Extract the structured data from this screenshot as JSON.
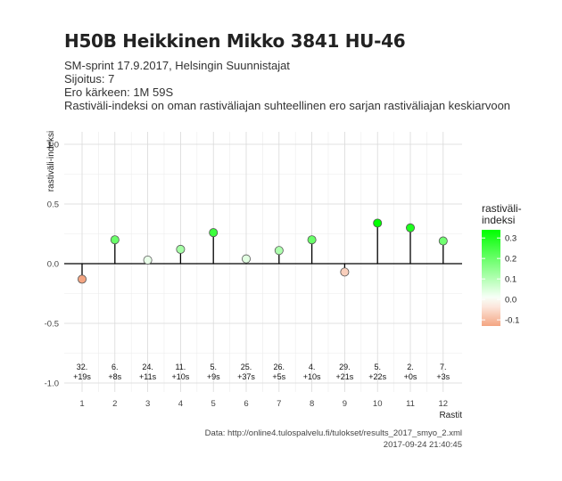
{
  "header": {
    "title": "H50B Heikkinen Mikko 3841 HU-46",
    "subtitle_lines": [
      "SM-sprint 17.9.2017, Helsingin Suunnistajat",
      "Sijoitus: 7",
      "Ero kärkeen: 1M 59S",
      "Rastiväli-indeksi on oman rastiväliajan suhteellinen ero sarjan rastiväliajan keskiarvoon"
    ]
  },
  "caption": {
    "source": "Data: http://online4.tulospalvelu.fi/tulokset/results_2017_smyo_2.xml",
    "timestamp": "2017-09-24 21:40:45"
  },
  "chart_data": {
    "type": "scatter",
    "style": "lollipop",
    "xlabel": "Rastit",
    "ylabel": "rastiväli-indeksi",
    "ylim": [
      -1.0,
      1.0
    ],
    "yticks": [
      -1.0,
      -0.5,
      0.0,
      0.5,
      1.0
    ],
    "ytick_labels": [
      "-1.0",
      "-0.5",
      "0.0",
      "0.5",
      "1.0"
    ],
    "grid": true,
    "x": [
      1,
      2,
      3,
      4,
      5,
      6,
      7,
      8,
      9,
      10,
      11,
      12
    ],
    "values": [
      -0.13,
      0.2,
      0.03,
      0.12,
      0.26,
      0.04,
      0.11,
      0.2,
      -0.07,
      0.34,
      0.3,
      0.19
    ],
    "annotations": [
      {
        "rank": "32.",
        "diff": "+19s"
      },
      {
        "rank": "6.",
        "diff": "+8s"
      },
      {
        "rank": "24.",
        "diff": "+11s"
      },
      {
        "rank": "11.",
        "diff": "+10s"
      },
      {
        "rank": "5.",
        "diff": "+9s"
      },
      {
        "rank": "25.",
        "diff": "+37s"
      },
      {
        "rank": "26.",
        "diff": "+5s"
      },
      {
        "rank": "4.",
        "diff": "+10s"
      },
      {
        "rank": "29.",
        "diff": "+21s"
      },
      {
        "rank": "5.",
        "diff": "+22s"
      },
      {
        "rank": "2.",
        "diff": "+0s"
      },
      {
        "rank": "7.",
        "diff": "+3s"
      }
    ],
    "legend": {
      "title_lines": [
        "rastiväli-",
        "indeksi"
      ],
      "placement": "right",
      "ticks": [
        0.3,
        0.2,
        0.1,
        0.0,
        -0.1
      ],
      "tick_labels": [
        "0.3",
        "0.2",
        "0.1",
        "0.0",
        "-0.1"
      ],
      "range": [
        -0.13,
        0.34
      ],
      "color_high": "#00ff00",
      "color_mid": "#ffffff",
      "color_low": "#f4a582"
    },
    "colors": {
      "grid_major": "#d9d9d9",
      "grid_minor": "#ececec",
      "stem": "#000000",
      "point_border": "#555555"
    }
  }
}
